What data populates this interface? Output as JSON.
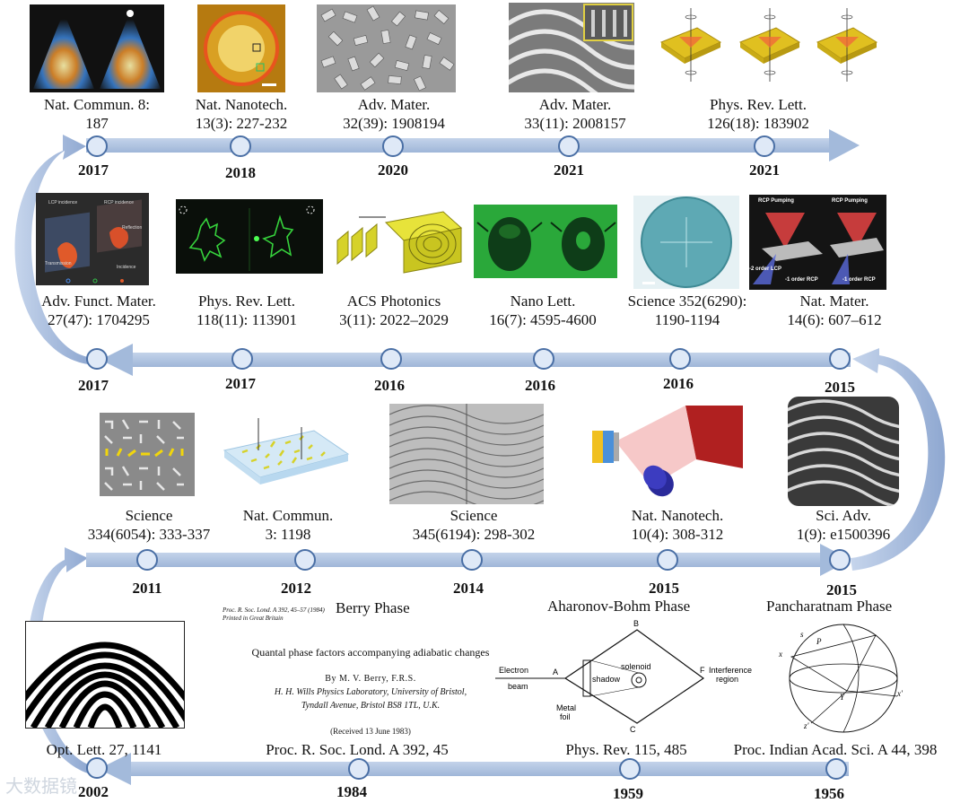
{
  "rows": [
    {
      "items": [
        {
          "cite1": "Nat. Commun. 8:",
          "cite2": "187",
          "year": "2017"
        },
        {
          "cite1": "Nat. Nanotech.",
          "cite2": "13(3): 227-232",
          "year": "2018"
        },
        {
          "cite1": "Adv. Mater.",
          "cite2": "32(39): 1908194",
          "year": "2020"
        },
        {
          "cite1": "Adv. Mater.",
          "cite2": "33(11): 2008157",
          "year": "2021"
        },
        {
          "cite1": "Phys. Rev. Lett.",
          "cite2": "126(18): 183902",
          "year": "2021"
        }
      ]
    },
    {
      "items": [
        {
          "cite1": "Adv. Funct. Mater.",
          "cite2": "27(47): 1704295",
          "year": "2017"
        },
        {
          "cite1": "Phys. Rev. Lett.",
          "cite2": "118(11): 113901",
          "year": "2017"
        },
        {
          "cite1": "ACS Photonics",
          "cite2": "3(11): 2022–2029",
          "year": "2016"
        },
        {
          "cite1": "Nano Lett.",
          "cite2": "16(7): 4595-4600",
          "year": "2016"
        },
        {
          "cite1": "Science 352(6290):",
          "cite2": "1190-1194",
          "year": "2016"
        },
        {
          "cite1": "Nat. Mater.",
          "cite2": "14(6): 607–612",
          "year": "2015"
        }
      ]
    },
    {
      "items": [
        {
          "cite1": "Science",
          "cite2": "334(6054): 333-337",
          "year": "2011"
        },
        {
          "cite1": "Nat. Commun.",
          "cite2": "3: 1198",
          "year": "2012"
        },
        {
          "cite1": "Science",
          "cite2": "345(6194): 298-302",
          "year": "2014"
        },
        {
          "cite1": "Nat. Nanotech.",
          "cite2": "10(4): 308-312",
          "year": "2015"
        },
        {
          "cite1": "Sci. Adv.",
          "cite2": "1(9): e1500396",
          "year": "2015"
        }
      ]
    },
    {
      "items": [
        {
          "cite1": "Opt. Lett. 27, 1141",
          "year": "2002"
        },
        {
          "cite1": "Proc. R. Soc. Lond. A 392, 45",
          "year": "1984"
        },
        {
          "cite1": "Phys. Rev. 115, 485",
          "year": "1959"
        },
        {
          "cite1": "Proc. Indian Acad. Sci. A 44, 398",
          "year": "1956"
        }
      ]
    }
  ],
  "phase_titles": {
    "berry": "Berry Phase",
    "ab": "Aharonov-Bohm Phase",
    "pancharatnam": "Pancharatnam Phase"
  },
  "panel_labels": {
    "r2_1_lcp": "LCP incidence",
    "r2_1_rcp": "RCP incidence",
    "r2_1_reflection": "Reflection",
    "r2_1_transmission": "Transmission",
    "r2_1_incidence": "Incidence",
    "r2_6_rcp1": "RCP Pumping",
    "r2_6_rcp2": "RCP Pumping",
    "r2_6_order1": "-2 order LCP",
    "r2_6_order2": "-1 order RCP",
    "r2_6_order3": "-1 order RCP"
  },
  "berry_paper": {
    "header1": "Proc. R. Soc. Lond. A 392, 45–57 (1984)",
    "header2": "Printed in Great Britain",
    "title": "Quantal phase factors accompanying adiabatic changes",
    "author": "By M. V. Berry, F.R.S.",
    "affil1": "H. H. Wills Physics Laboratory, University of Bristol,",
    "affil2": "Tyndall Avenue, Bristol BS8 1TL, U.K.",
    "received": "(Received 13 June 1983)"
  },
  "ab_diagram": {
    "electron": "Electron",
    "beam": "beam",
    "a": "A",
    "b": "B",
    "c": "C",
    "f": "F",
    "shadow": "shadow",
    "solenoid": "solenoid",
    "interference": "Interference",
    "region": "region",
    "metal": "Metal",
    "foil": "foil"
  },
  "sphere_labels": {
    "s": "s",
    "p": "P",
    "x": "x",
    "x2": "x'",
    "z": "z'",
    "y": "Y"
  },
  "watermark": "大数据镜",
  "colors": {
    "band": "#b4c7e7",
    "node_fill": "#dfe9f7",
    "node_border": "#4a6fa5",
    "green": "#19b51a",
    "yellow": "#d6d22a"
  }
}
